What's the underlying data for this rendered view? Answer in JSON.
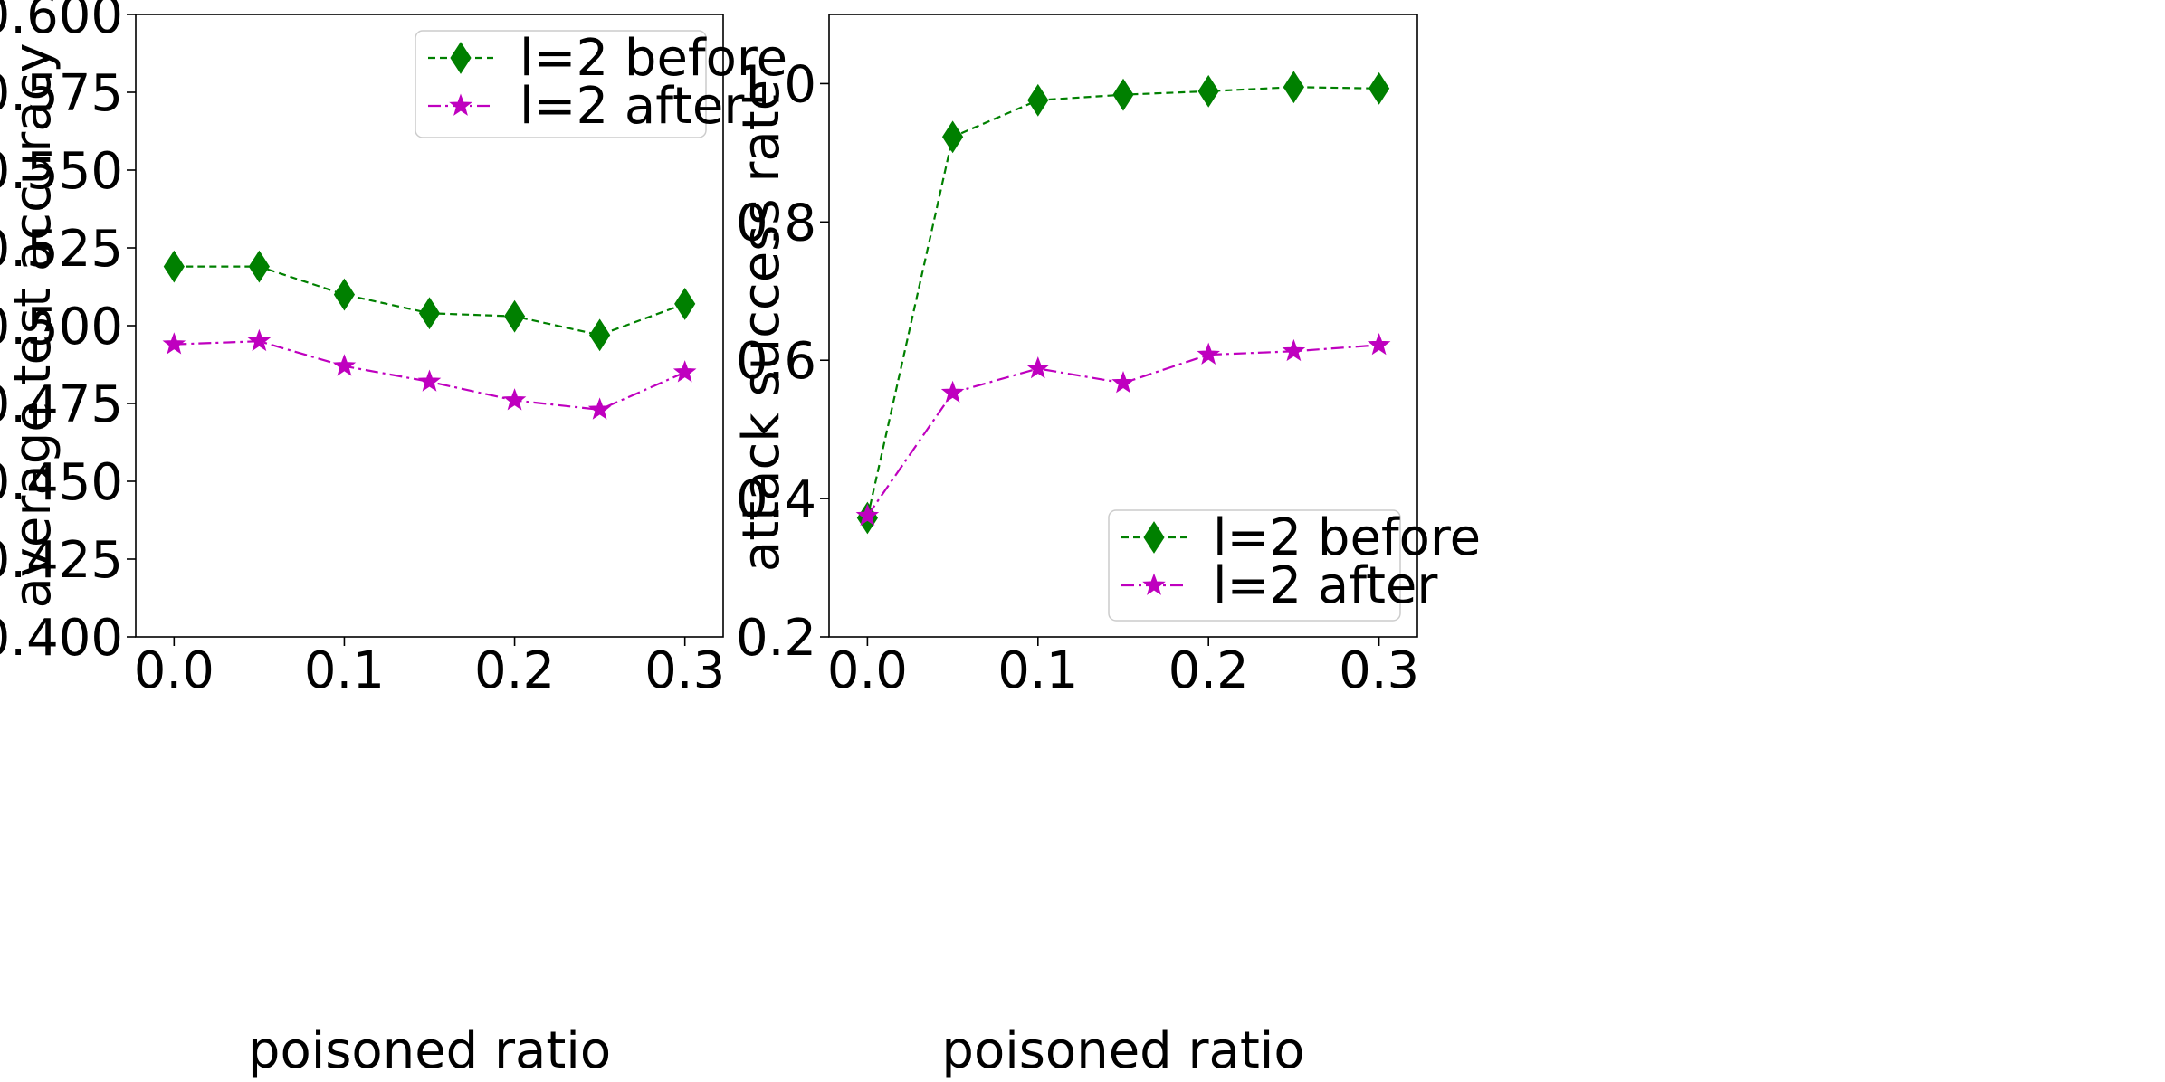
{
  "chart_data": [
    {
      "type": "line",
      "xlabel": "poisoned ratio",
      "ylabel": "average test accuracy",
      "xlim": [
        -0.0225,
        0.3225
      ],
      "ylim": [
        0.4,
        0.6
      ],
      "xticks": [
        0.0,
        0.1,
        0.2,
        0.3
      ],
      "xtick_labels": [
        "0.0",
        "0.1",
        "0.2",
        "0.3"
      ],
      "yticks": [
        0.4,
        0.425,
        0.45,
        0.475,
        0.5,
        0.525,
        0.55,
        0.575,
        0.6
      ],
      "ytick_labels": [
        "0.400",
        "0.425",
        "0.450",
        "0.475",
        "0.500",
        "0.525",
        "0.550",
        "0.575",
        "0.600"
      ],
      "grid": false,
      "legend_position": "top-right",
      "x": [
        0.0,
        0.05,
        0.1,
        0.15,
        0.2,
        0.25,
        0.3
      ],
      "series": [
        {
          "name": "l=2 before",
          "color": "#008000",
          "marker": "diamond",
          "linestyle": "dashed",
          "values": [
            0.519,
            0.519,
            0.51,
            0.504,
            0.503,
            0.497,
            0.507
          ]
        },
        {
          "name": "l=2 after",
          "color": "#bf00bf",
          "marker": "star",
          "linestyle": "dashdot",
          "values": [
            0.494,
            0.495,
            0.487,
            0.482,
            0.476,
            0.473,
            0.485
          ]
        }
      ]
    },
    {
      "type": "line",
      "xlabel": "poisoned ratio",
      "ylabel": "attack success rate",
      "xlim": [
        -0.0225,
        0.3225
      ],
      "ylim": [
        0.2,
        1.1
      ],
      "xticks": [
        0.0,
        0.1,
        0.2,
        0.3
      ],
      "xtick_labels": [
        "0.0",
        "0.1",
        "0.2",
        "0.3"
      ],
      "yticks": [
        0.2,
        0.4,
        0.6,
        0.8,
        1.0
      ],
      "ytick_labels": [
        "0.2",
        "0.4",
        "0.6",
        "0.8",
        "1.0"
      ],
      "grid": false,
      "legend_position": "bottom-right",
      "x": [
        0.0,
        0.05,
        0.1,
        0.15,
        0.2,
        0.25,
        0.3
      ],
      "series": [
        {
          "name": "l=2 before",
          "color": "#008000",
          "marker": "diamond",
          "linestyle": "dashed",
          "values": [
            0.372,
            0.923,
            0.976,
            0.984,
            0.989,
            0.995,
            0.993
          ]
        },
        {
          "name": "l=2 after",
          "color": "#bf00bf",
          "marker": "star",
          "linestyle": "dashdot",
          "values": [
            0.375,
            0.553,
            0.588,
            0.567,
            0.608,
            0.613,
            0.622
          ]
        }
      ]
    }
  ]
}
